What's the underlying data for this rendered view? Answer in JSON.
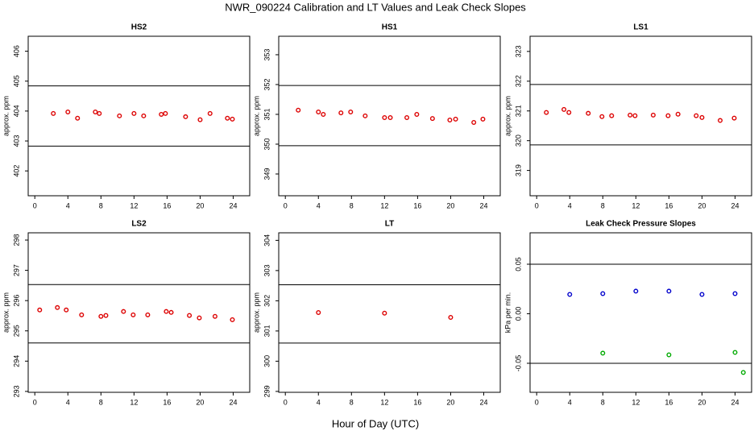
{
  "figure": {
    "title": "NWR_090224  Calibration and LT Values and Leak Check Slopes",
    "xlabel": "Hour of Day (UTC)"
  },
  "chart_data": [
    {
      "type": "scatter",
      "title": "HS2",
      "ylabel": "approx. ppm",
      "xlim": [
        -0.8,
        26
      ],
      "ylim": [
        401.17,
        406.5
      ],
      "xticks": [
        0,
        4,
        8,
        12,
        16,
        20,
        24
      ],
      "yticks": [
        402,
        403,
        404,
        405,
        406
      ],
      "hlines": [
        404.84,
        402.83
      ],
      "series": [
        {
          "color": "#dd0000",
          "x": [
            2.24,
            4.0,
            5.17,
            7.32,
            7.8,
            10.24,
            12.0,
            13.17,
            15.3,
            15.8,
            18.24,
            20.0,
            21.2,
            23.3,
            23.9
          ],
          "values": [
            403.92,
            403.97,
            403.76,
            403.97,
            403.92,
            403.84,
            403.92,
            403.84,
            403.89,
            403.92,
            403.81,
            403.71,
            403.92,
            403.76,
            403.73
          ]
        }
      ]
    },
    {
      "type": "scatter",
      "title": "HS1",
      "ylabel": "approx. ppm",
      "xlim": [
        -0.8,
        26
      ],
      "ylim": [
        348.27,
        353.62
      ],
      "xticks": [
        0,
        4,
        8,
        12,
        16,
        20,
        24
      ],
      "yticks": [
        349,
        350,
        351,
        352,
        353
      ],
      "hlines": [
        351.97,
        349.95
      ],
      "series": [
        {
          "color": "#dd0000",
          "x": [
            1.56,
            4.0,
            4.59,
            6.73,
            7.9,
            9.66,
            12.0,
            12.7,
            14.7,
            15.9,
            17.8,
            19.9,
            20.6,
            22.8,
            23.9
          ],
          "values": [
            351.14,
            351.08,
            351.0,
            351.05,
            351.08,
            350.95,
            350.89,
            350.89,
            350.89,
            351.0,
            350.86,
            350.81,
            350.84,
            350.73,
            350.84
          ]
        }
      ]
    },
    {
      "type": "scatter",
      "title": "LS1",
      "ylabel": "approx. ppm",
      "xlim": [
        -0.8,
        26
      ],
      "ylim": [
        318.15,
        323.51
      ],
      "xticks": [
        0,
        4,
        8,
        12,
        16,
        20,
        24
      ],
      "yticks": [
        319,
        320,
        321,
        322,
        323
      ],
      "hlines": [
        321.89,
        319.86
      ],
      "series": [
        {
          "color": "#dd0000",
          "x": [
            1.17,
            3.3,
            3.9,
            6.24,
            7.9,
            9.07,
            11.3,
            11.9,
            14.1,
            15.9,
            17.1,
            19.3,
            20.0,
            22.2,
            23.9
          ],
          "values": [
            320.95,
            321.05,
            320.95,
            320.92,
            320.81,
            320.84,
            320.86,
            320.84,
            320.86,
            320.84,
            320.89,
            320.84,
            320.78,
            320.68,
            320.76
          ]
        }
      ]
    },
    {
      "type": "scatter",
      "title": "LS2",
      "ylabel": "approx. ppm",
      "xlim": [
        -0.8,
        26
      ],
      "ylim": [
        292.97,
        298.24
      ],
      "xticks": [
        0,
        4,
        8,
        12,
        16,
        20,
        24
      ],
      "yticks": [
        293,
        294,
        295,
        296,
        297,
        298
      ],
      "hlines": [
        296.53,
        294.6
      ],
      "series": [
        {
          "color": "#dd0000",
          "x": [
            0.59,
            2.73,
            3.8,
            5.66,
            8.0,
            8.6,
            10.73,
            11.9,
            13.66,
            15.9,
            16.5,
            18.7,
            19.9,
            21.8,
            23.9
          ],
          "values": [
            295.69,
            295.77,
            295.69,
            295.53,
            295.48,
            295.51,
            295.64,
            295.53,
            295.53,
            295.64,
            295.61,
            295.51,
            295.43,
            295.48,
            295.37
          ]
        }
      ]
    },
    {
      "type": "scatter",
      "title": "LT",
      "ylabel": "approx. ppm",
      "xlim": [
        -0.8,
        26
      ],
      "ylim": [
        298.97,
        304.25
      ],
      "xticks": [
        0,
        4,
        8,
        12,
        16,
        20,
        24
      ],
      "yticks": [
        299,
        300,
        301,
        302,
        303,
        304
      ],
      "hlines": [
        302.53,
        300.6
      ],
      "series": [
        {
          "color": "#dd0000",
          "x": [
            4.0,
            12.0,
            20.0
          ],
          "values": [
            301.61,
            301.59,
            301.45
          ]
        }
      ]
    },
    {
      "type": "scatter",
      "title": "Leak Check Pressure Slopes",
      "ylabel": "kPa per min.",
      "xlim": [
        -0.8,
        26
      ],
      "ylim": [
        -0.0793,
        0.0817
      ],
      "xticks": [
        0,
        4,
        8,
        12,
        16,
        20,
        24
      ],
      "yticks": [
        -0.05,
        {
          "value": 0,
          "label": "0.00"
        },
        0.05
      ],
      "hlines": [
        0.05,
        -0.05
      ],
      "series": [
        {
          "color": "#0000cc",
          "x": [
            4,
            8,
            12,
            16,
            20,
            24
          ],
          "values": [
            0.0195,
            0.0203,
            0.0228,
            0.0228,
            0.0195,
            0.0203
          ]
        },
        {
          "color": "#00aa00",
          "x": [
            8,
            16,
            24,
            25
          ],
          "values": [
            -0.0398,
            -0.0415,
            -0.039,
            -0.0593
          ]
        }
      ]
    }
  ]
}
